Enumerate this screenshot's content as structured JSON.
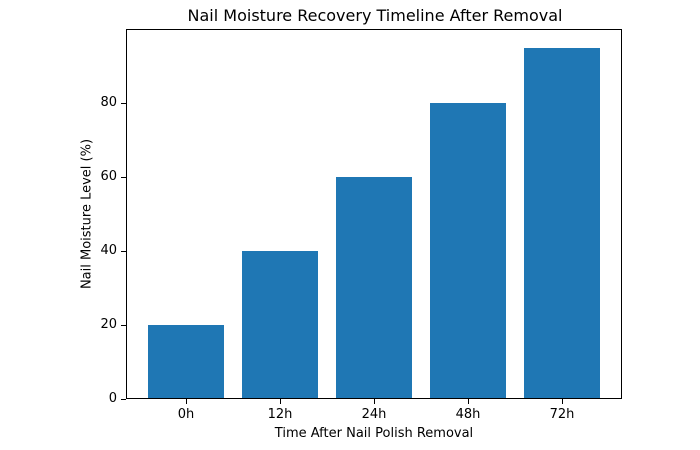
{
  "chart_data": {
    "type": "bar",
    "title": "Nail Moisture Recovery Timeline After Removal",
    "xlabel": "Time After Nail Polish Removal",
    "ylabel": "Nail Moisture Level (%)",
    "categories": [
      "0h",
      "12h",
      "24h",
      "48h",
      "72h"
    ],
    "values": [
      20,
      40,
      60,
      80,
      95
    ],
    "ylim": [
      0,
      100
    ],
    "yticks": [
      0,
      20,
      40,
      60,
      80
    ],
    "grid": false,
    "color": "#1f77b4"
  }
}
